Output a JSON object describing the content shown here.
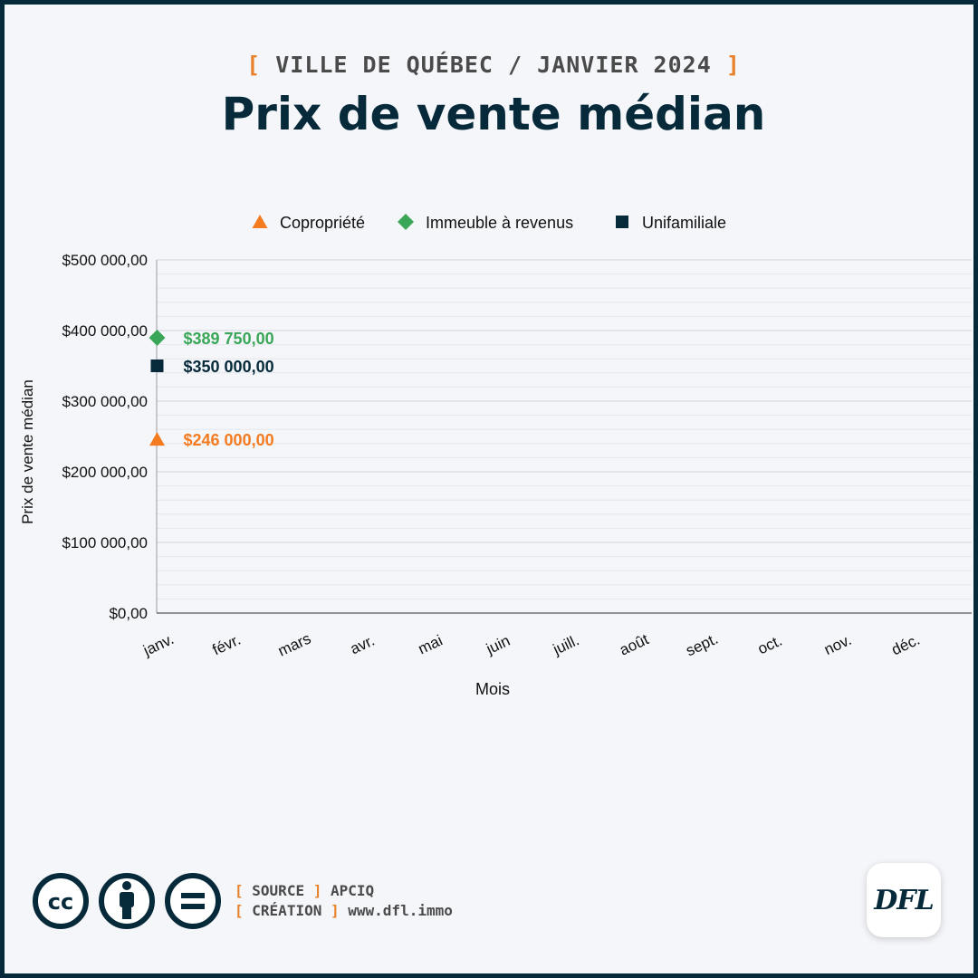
{
  "header": {
    "kicker_open": "[",
    "kicker_text": "VILLE DE QUÉBEC / JANVIER 2024",
    "kicker_close": "]",
    "title": "Prix de vente médian"
  },
  "chart_data": {
    "type": "scatter",
    "title": "Prix de vente médian",
    "xlabel": "Mois",
    "ylabel": "Prix de vente médian",
    "categories": [
      "janv.",
      "févr.",
      "mars",
      "avr.",
      "mai",
      "juin",
      "juill.",
      "août",
      "sept.",
      "oct.",
      "nov.",
      "déc."
    ],
    "ylim": [
      0,
      500000
    ],
    "yticks": [
      0,
      100000,
      200000,
      300000,
      400000,
      500000
    ],
    "ytick_labels": [
      "$0,00",
      "$100 000,00",
      "$200 000,00",
      "$300 000,00",
      "$400 000,00",
      "$500 000,00"
    ],
    "legend_position": "top",
    "grid": true,
    "series": [
      {
        "name": "Copropriété",
        "marker": "triangle",
        "color": "#f47b20",
        "values": [
          246000,
          null,
          null,
          null,
          null,
          null,
          null,
          null,
          null,
          null,
          null,
          null
        ],
        "labels": [
          "$246 000,00"
        ]
      },
      {
        "name": "Immeuble à revenus",
        "marker": "diamond",
        "color": "#3aa657",
        "values": [
          389750,
          null,
          null,
          null,
          null,
          null,
          null,
          null,
          null,
          null,
          null,
          null
        ],
        "labels": [
          "$389 750,00"
        ]
      },
      {
        "name": "Unifamiliale",
        "marker": "square",
        "color": "#062a3a",
        "values": [
          350000,
          null,
          null,
          null,
          null,
          null,
          null,
          null,
          null,
          null,
          null,
          null
        ],
        "labels": [
          "$350 000,00"
        ]
      }
    ]
  },
  "footer": {
    "source_label": "SOURCE",
    "source_value": "APCIQ",
    "creation_label": "CRÉATION",
    "creation_value": "www.dfl.immo",
    "logo_text": "DFL",
    "cc_icons": [
      "cc-icon",
      "attribution-icon",
      "no-derivatives-icon"
    ]
  }
}
